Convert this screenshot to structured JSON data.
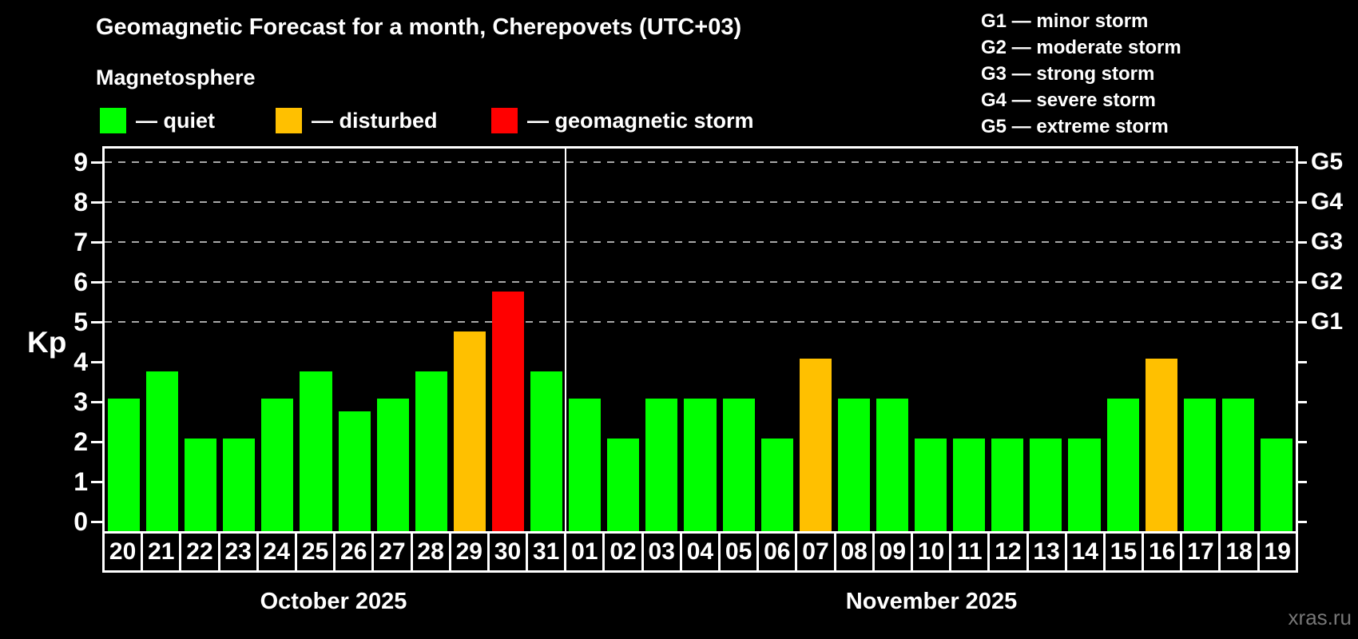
{
  "title": "Geomagnetic Forecast for a month, Cherepovets (UTC+03)",
  "subtitle": "Magnetosphere",
  "condition_legend": {
    "items": [
      {
        "label": "— quiet",
        "status": "quiet",
        "color": "#00ff00"
      },
      {
        "label": "— disturbed",
        "status": "disturbed",
        "color": "#ffc000"
      },
      {
        "label": "— geomagnetic storm",
        "status": "storm",
        "color": "#ff0000"
      }
    ]
  },
  "storm_scale_legend": {
    "items": [
      {
        "label": "G1 — minor storm"
      },
      {
        "label": "G2 — moderate storm"
      },
      {
        "label": "G3 — strong storm"
      },
      {
        "label": "G4 — severe storm"
      },
      {
        "label": "G5 — extreme storm"
      }
    ]
  },
  "axis": {
    "ylabel": "Kp",
    "yticks": [
      "0",
      "1",
      "2",
      "3",
      "4",
      "5",
      "6",
      "7",
      "8",
      "9"
    ],
    "right_labels": [
      {
        "kp": 5,
        "label": "G1"
      },
      {
        "kp": 6,
        "label": "G2"
      },
      {
        "kp": 7,
        "label": "G3"
      },
      {
        "kp": 8,
        "label": "G4"
      },
      {
        "kp": 9,
        "label": "G5"
      }
    ]
  },
  "watermark": "xras.ru",
  "chart_data": {
    "type": "bar",
    "title": "Geomagnetic Forecast for a month, Cherepovets (UTC+03)",
    "xlabel": "",
    "ylabel": "Kp",
    "ylim": [
      0,
      9
    ],
    "grid": "dashed horizontal at Kp 5-9",
    "gridlines_at": [
      5,
      6,
      7,
      8,
      9
    ],
    "legend_position": "top-left",
    "status_colors": {
      "quiet": "#00ff00",
      "disturbed": "#ffc000",
      "storm": "#ff0000"
    },
    "series": [
      {
        "month": "October 2025",
        "days": [
          "20",
          "21",
          "22",
          "23",
          "24",
          "25",
          "26",
          "27",
          "28",
          "29",
          "30",
          "31"
        ],
        "values": [
          3,
          3.67,
          2,
          2,
          3,
          3.67,
          2.67,
          3,
          3.67,
          4.67,
          5.67,
          3.67
        ],
        "status": [
          "quiet",
          "quiet",
          "quiet",
          "quiet",
          "quiet",
          "quiet",
          "quiet",
          "quiet",
          "quiet",
          "disturbed",
          "storm",
          "quiet"
        ]
      },
      {
        "month": "November 2025",
        "days": [
          "01",
          "02",
          "03",
          "04",
          "05",
          "06",
          "07",
          "08",
          "09",
          "10",
          "11",
          "12",
          "13",
          "14",
          "15",
          "16",
          "17",
          "18",
          "19"
        ],
        "values": [
          3,
          2,
          3,
          3,
          3,
          2,
          4,
          3,
          3,
          2,
          2,
          2,
          2,
          2,
          3,
          4,
          3,
          3,
          2
        ],
        "status": [
          "quiet",
          "quiet",
          "quiet",
          "quiet",
          "quiet",
          "quiet",
          "disturbed",
          "quiet",
          "quiet",
          "quiet",
          "quiet",
          "quiet",
          "quiet",
          "quiet",
          "quiet",
          "disturbed",
          "quiet",
          "quiet",
          "quiet"
        ]
      }
    ]
  }
}
